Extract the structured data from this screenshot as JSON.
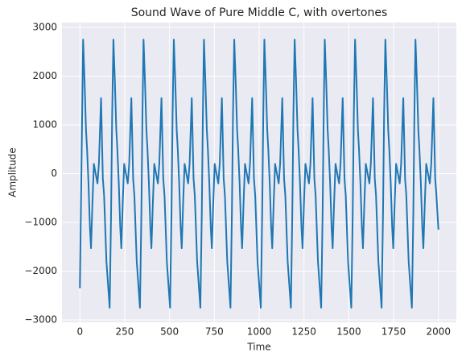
{
  "chart_data": {
    "type": "line",
    "title": "Sound Wave of Pure Middle C, with overtones",
    "xlabel": "Time",
    "ylabel": "Amplitude",
    "xlim": [
      -100,
      2100
    ],
    "ylim": [
      -3050,
      3100
    ],
    "xticks": [
      0,
      250,
      500,
      750,
      1000,
      1250,
      1500,
      1750,
      2000
    ],
    "yticks": [
      {
        "value": -3000,
        "label": "−3000"
      },
      {
        "value": -2000,
        "label": "−2000"
      },
      {
        "value": -1000,
        "label": "−1000"
      },
      0,
      1000,
      2000,
      3000
    ],
    "grid": true,
    "series": [
      {
        "color": "#1f77b4",
        "x": [
          0,
          18,
          26,
          34,
          40,
          48,
          56,
          62,
          70,
          78,
          88,
          98,
          106,
          118,
          128,
          135,
          148,
          166,
          174,
          180,
          187,
          195,
          203,
          209,
          217,
          225,
          231,
          239,
          247,
          257,
          267,
          275,
          287,
          297,
          304,
          317,
          335,
          343,
          349,
          355,
          363,
          371,
          377,
          385,
          393,
          399,
          407,
          415,
          425,
          435,
          443,
          455,
          465,
          472,
          485,
          503,
          511,
          517,
          524,
          532,
          540,
          546,
          554,
          562,
          568,
          576,
          584,
          594,
          604,
          612,
          624,
          634,
          641,
          654,
          672,
          680,
          686,
          692,
          700,
          708,
          714,
          722,
          730,
          736,
          744,
          752,
          762,
          772,
          780,
          792,
          802,
          809,
          822,
          840,
          848,
          854,
          861,
          869,
          877,
          883,
          891,
          899,
          905,
          913,
          921,
          931,
          941,
          949,
          961,
          971,
          978,
          991,
          1009,
          1017,
          1023,
          1029,
          1037,
          1045,
          1051,
          1059,
          1067,
          1073,
          1081,
          1089,
          1099,
          1109,
          1117,
          1129,
          1139,
          1146,
          1159,
          1177,
          1185,
          1191,
          1198,
          1206,
          1214,
          1220,
          1228,
          1236,
          1242,
          1250,
          1258,
          1268,
          1278,
          1286,
          1298,
          1308,
          1315,
          1328,
          1346,
          1354,
          1360,
          1366,
          1374,
          1382,
          1388,
          1396,
          1404,
          1410,
          1418,
          1426,
          1436,
          1446,
          1454,
          1466,
          1476,
          1483,
          1496,
          1514,
          1522,
          1528,
          1535,
          1543,
          1551,
          1557,
          1565,
          1573,
          1579,
          1587,
          1595,
          1605,
          1615,
          1623,
          1635,
          1645,
          1652,
          1665,
          1683,
          1691,
          1697,
          1704,
          1712,
          1720,
          1726,
          1734,
          1742,
          1748,
          1756,
          1764,
          1774,
          1784,
          1792,
          1804,
          1814,
          1821,
          1834,
          1852,
          1860,
          1866,
          1872,
          1880,
          1888,
          1894,
          1902,
          1910,
          1916,
          1924,
          1932,
          1942,
          1952,
          1960,
          1972,
          1982,
          1989,
          2000
        ],
        "values": [
          -2350,
          2750,
          1900,
          900,
          500,
          -200,
          -1100,
          -1530,
          -600,
          200,
          0,
          -200,
          200,
          1550,
          -100,
          -450,
          -1800,
          -2750,
          -800,
          1200,
          2750,
          1900,
          900,
          500,
          -200,
          -1100,
          -1530,
          -600,
          200,
          0,
          -200,
          200,
          1550,
          -100,
          -450,
          -1800,
          -2750,
          -800,
          1200,
          2750,
          1900,
          900,
          500,
          -200,
          -1100,
          -1530,
          -600,
          200,
          0,
          -200,
          200,
          1550,
          -100,
          -450,
          -1800,
          -2750,
          -800,
          1200,
          2750,
          1900,
          900,
          500,
          -200,
          -1100,
          -1530,
          -600,
          200,
          0,
          -200,
          200,
          1550,
          -100,
          -450,
          -1800,
          -2750,
          -800,
          1200,
          2750,
          1900,
          900,
          500,
          -200,
          -1100,
          -1530,
          -600,
          200,
          0,
          -200,
          200,
          1550,
          -100,
          -450,
          -1800,
          -2750,
          -800,
          1200,
          2750,
          1900,
          900,
          500,
          -200,
          -1100,
          -1530,
          -600,
          200,
          0,
          -200,
          200,
          1550,
          -100,
          -450,
          -1800,
          -2750,
          -800,
          1200,
          2750,
          1900,
          900,
          500,
          -200,
          -1100,
          -1530,
          -600,
          200,
          0,
          -200,
          200,
          1550,
          -100,
          -450,
          -1800,
          -2750,
          -800,
          1200,
          2750,
          1900,
          900,
          500,
          -200,
          -1100,
          -1530,
          -600,
          200,
          0,
          -200,
          200,
          1550,
          -100,
          -450,
          -1800,
          -2750,
          -800,
          1200,
          2750,
          1900,
          900,
          500,
          -200,
          -1100,
          -1530,
          -600,
          200,
          0,
          -200,
          200,
          1550,
          -100,
          -450,
          -1800,
          -2750,
          -800,
          1200,
          2750,
          1900,
          900,
          500,
          -200,
          -1100,
          -1530,
          -600,
          200,
          0,
          -200,
          200,
          1550,
          -100,
          -450,
          -1800,
          -2750,
          -800,
          1200,
          2750,
          1900,
          900,
          500,
          -200,
          -1100,
          -1530,
          -600,
          200,
          0,
          -200,
          200,
          1550,
          -100,
          -450,
          -1800,
          -2750,
          -800,
          1200,
          2750,
          1900,
          900,
          500,
          -200,
          -1100,
          -1530,
          -600,
          200,
          0,
          -200,
          200,
          1550,
          -100,
          -450,
          -1150
        ]
      }
    ]
  }
}
